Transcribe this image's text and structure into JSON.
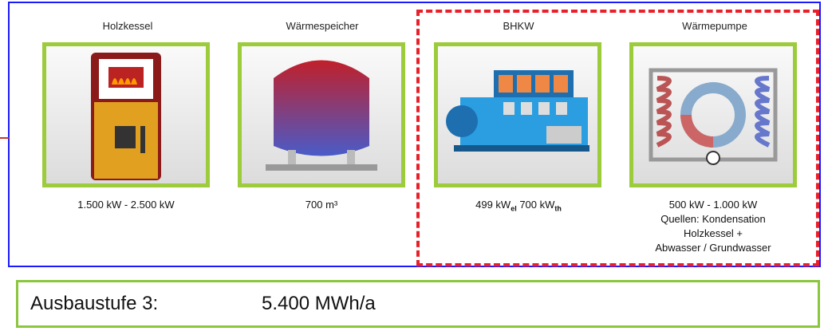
{
  "components": [
    {
      "title": "Holzkessel",
      "specs": [
        "1.500 kW - 2.500 kW"
      ]
    },
    {
      "title": "Wärmespeicher",
      "specs": [
        "700 m³"
      ]
    },
    {
      "title": "BHKW",
      "spec_parts": [
        {
          "text": "499 kW",
          "sub": "el"
        },
        {
          "text": " 700 kW",
          "sub": "th"
        }
      ]
    },
    {
      "title": "Wärmepumpe",
      "specs": [
        "500 kW - 1.000 kW",
        "Quellen: Kondensation",
        "Holzkessel +",
        "Abwasser / Grundwasser"
      ]
    }
  ],
  "footer": {
    "label": "Ausbaustufe 3:",
    "value": "5.400 MWh/a"
  }
}
